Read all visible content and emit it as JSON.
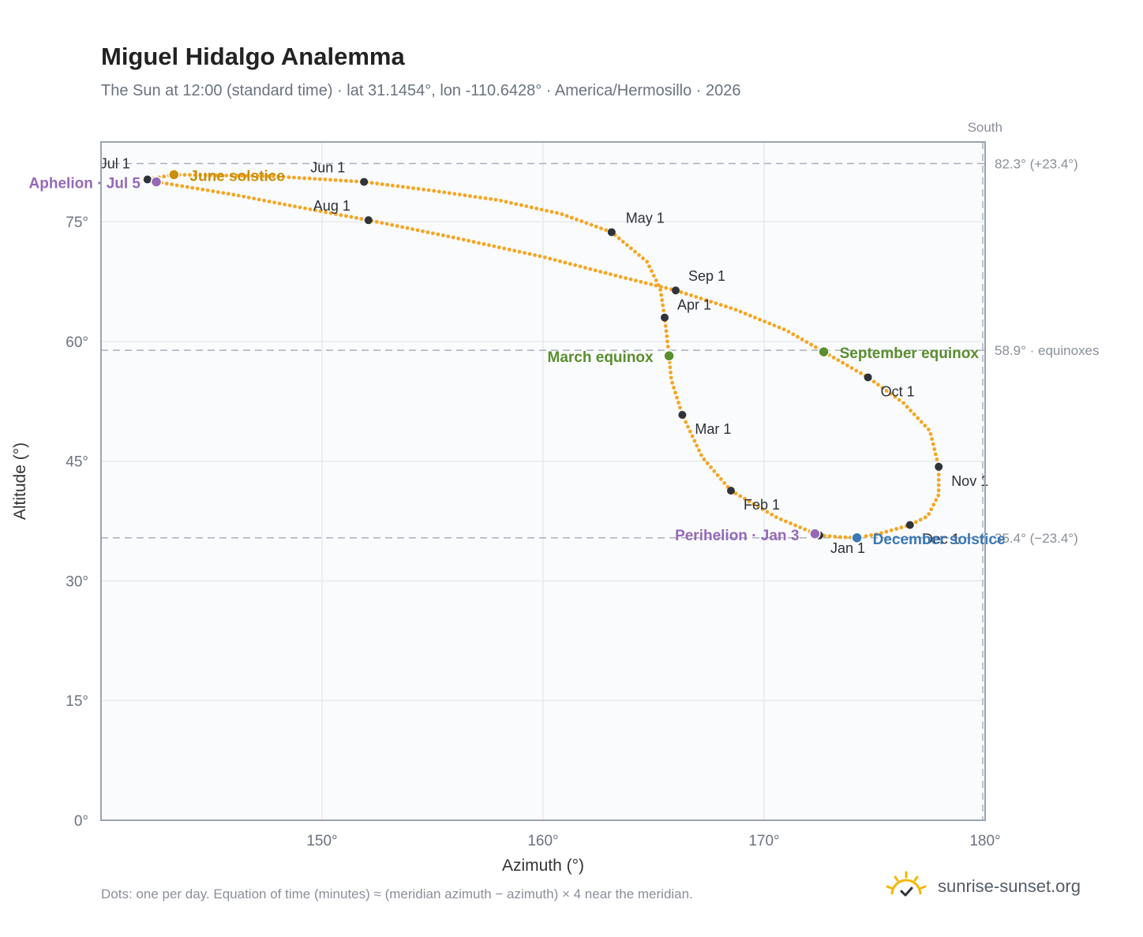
{
  "title": "Miguel Hidalgo Analemma",
  "subtitle": "The Sun at 12:00 (standard time) · lat 31.1454°, lon -110.6428° · America/Hermosillo · 2026",
  "footnote": "Dots: one per day. Equation of time (minutes) ≈ (meridian azimuth − azimuth) × 4 near the meridian.",
  "brand": {
    "name": "sunrise-sunset.org",
    "icon": "sun-logo-icon"
  },
  "colors": {
    "curve": "#f5a623",
    "month_marker": "#2f343b",
    "june_solstice": "#c8900a",
    "december_solstice": "#3a78b6",
    "equinox": "#5a8e2e",
    "apsis": "#9569b8",
    "reference_line": "#a9b1bd",
    "plot_background": "#fafbfd",
    "frame": "#9aa4b0"
  },
  "chart_data": {
    "type": "scatter",
    "title": "Miguel Hidalgo Analemma",
    "xlabel": "Azimuth (°)",
    "ylabel": "Altitude (°)",
    "xlim": [
      140,
      180
    ],
    "ylim": [
      0,
      85
    ],
    "xticks": [
      150,
      160,
      170,
      180
    ],
    "xtick_labels": [
      "150°",
      "160°",
      "170°",
      "180°"
    ],
    "yticks": [
      0,
      15,
      30,
      45,
      60,
      75
    ],
    "ytick_labels": [
      "0°",
      "15°",
      "30°",
      "45°",
      "60°",
      "75°"
    ],
    "grid": true,
    "legend": "none",
    "meridian": {
      "azimuth": 180,
      "label": "South"
    },
    "reference_lines": [
      {
        "altitude": 82.3,
        "label": "82.3° (+23.4°)"
      },
      {
        "altitude": 58.9,
        "label": "58.9° · equinoxes"
      },
      {
        "altitude": 35.4,
        "label": "35.4° (−23.4°)"
      }
    ],
    "month_markers": [
      {
        "label": "Jan 1",
        "az": 172.5,
        "alt": 35.7
      },
      {
        "label": "Feb 1",
        "az": 168.5,
        "alt": 41.3
      },
      {
        "label": "Mar 1",
        "az": 166.3,
        "alt": 50.8
      },
      {
        "label": "Apr 1",
        "az": 165.5,
        "alt": 63.0
      },
      {
        "label": "May 1",
        "az": 163.1,
        "alt": 73.7
      },
      {
        "label": "Jun 1",
        "az": 151.9,
        "alt": 80.0
      },
      {
        "label": "Jul 1",
        "az": 142.1,
        "alt": 80.3
      },
      {
        "label": "Aug 1",
        "az": 152.1,
        "alt": 75.2
      },
      {
        "label": "Sep 1",
        "az": 166.0,
        "alt": 66.4
      },
      {
        "label": "Oct 1",
        "az": 174.7,
        "alt": 55.5
      },
      {
        "label": "Nov 1",
        "az": 177.9,
        "alt": 44.3
      },
      {
        "label": "Dec 1",
        "az": 176.6,
        "alt": 37.0
      }
    ],
    "events": [
      {
        "label": "June solstice",
        "az": 143.3,
        "alt": 80.9,
        "color_key": "june_solstice"
      },
      {
        "label": "December solstice",
        "az": 174.2,
        "alt": 35.4,
        "color_key": "december_solstice"
      },
      {
        "label": "March equinox",
        "az": 165.7,
        "alt": 58.2,
        "color_key": "equinox"
      },
      {
        "label": "September equinox",
        "az": 172.7,
        "alt": 58.7,
        "color_key": "equinox"
      },
      {
        "label": "Perihelion · Jan 3",
        "az": 172.3,
        "alt": 35.9,
        "color_key": "apsis"
      },
      {
        "label": "Aphelion · Jul 5",
        "az": 142.5,
        "alt": 80.0,
        "color_key": "apsis"
      }
    ],
    "analemma_daily_path": [
      [
        172.5,
        35.7
      ],
      [
        170.6,
        37.9
      ],
      [
        168.5,
        41.3
      ],
      [
        167.2,
        45.5
      ],
      [
        166.3,
        50.8
      ],
      [
        165.8,
        55.2
      ],
      [
        165.7,
        58.2
      ],
      [
        165.6,
        60.6
      ],
      [
        165.5,
        63.0
      ],
      [
        165.3,
        66.6
      ],
      [
        164.7,
        70.0
      ],
      [
        163.1,
        73.7
      ],
      [
        160.8,
        76.0
      ],
      [
        158.0,
        77.7
      ],
      [
        155.0,
        78.9
      ],
      [
        151.9,
        80.0
      ],
      [
        147.8,
        80.7
      ],
      [
        143.3,
        80.9
      ],
      [
        142.1,
        80.3
      ],
      [
        142.5,
        80.0
      ],
      [
        146.0,
        78.4
      ],
      [
        149.0,
        76.8
      ],
      [
        152.1,
        75.2
      ],
      [
        156.0,
        73.0
      ],
      [
        160.0,
        70.6
      ],
      [
        163.5,
        68.1
      ],
      [
        166.0,
        66.4
      ],
      [
        168.7,
        64.0
      ],
      [
        171.0,
        61.4
      ],
      [
        172.7,
        58.7
      ],
      [
        174.7,
        55.5
      ],
      [
        176.3,
        52.3
      ],
      [
        177.5,
        48.8
      ],
      [
        177.9,
        44.3
      ],
      [
        177.9,
        40.8
      ],
      [
        177.4,
        38.1
      ],
      [
        176.6,
        37.0
      ],
      [
        175.2,
        35.9
      ],
      [
        174.2,
        35.4
      ],
      [
        173.4,
        35.5
      ],
      [
        172.5,
        35.7
      ]
    ]
  }
}
